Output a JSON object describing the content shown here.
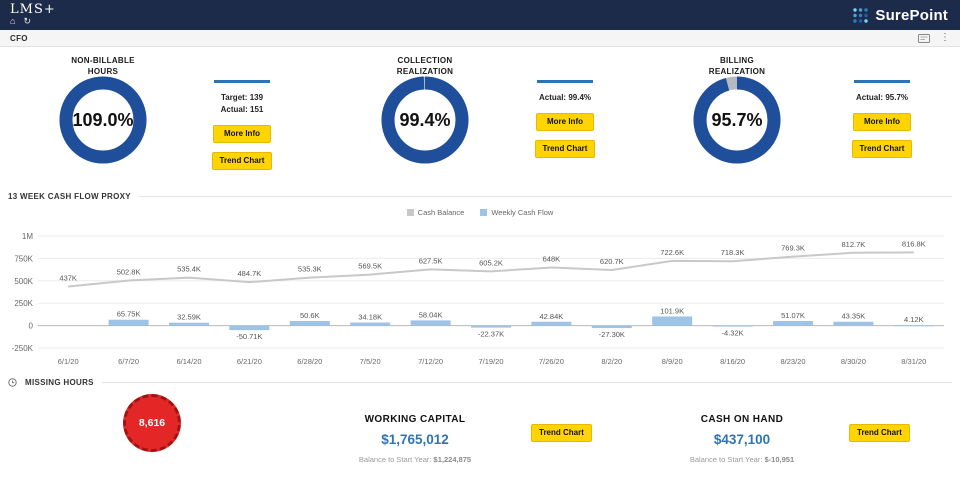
{
  "colors": {
    "navy": "#1c2b4a",
    "donut_blue": "#1f4e9b",
    "donut_track": "#b6bac0",
    "accent_blue": "#2e74b5",
    "button_yellow": "#ffd400",
    "bar_blue": "#9dc3e6",
    "line_gray": "#c8c8c8",
    "alert_red": "#e32726"
  },
  "icons": {
    "home": "⌂",
    "refresh": "↻",
    "kebab": "⋮"
  },
  "header": {
    "logo": "LMS+",
    "brand": "SurePoint"
  },
  "rolebar": {
    "role": "CFO"
  },
  "kpis": [
    {
      "title_line1": "NON-BILLABLE",
      "title_line2": "HOURS",
      "value": "109.0%",
      "pct": 109,
      "target_label": "Target: 139",
      "actual_label": "Actual: 151",
      "more_info_label": "More Info",
      "trend_chart_label": "Trend Chart"
    },
    {
      "title_line1": "COLLECTION",
      "title_line2": "REALIZATION",
      "value": "99.4%",
      "pct": 99.4,
      "actual_label": "Actual: 99.4%",
      "more_info_label": "More Info",
      "trend_chart_label": "Trend Chart"
    },
    {
      "title_line1": "BILLING",
      "title_line2": "REALIZATION",
      "value": "95.7%",
      "pct": 95.7,
      "actual_label": "Actual: 95.7%",
      "more_info_label": "More Info",
      "trend_chart_label": "Trend Chart"
    }
  ],
  "cashflow": {
    "section_title": "13 WEEK CASH FLOW PROXY"
  },
  "chart_data": {
    "type": "combo",
    "title": "13 WEEK CASH FLOW PROXY",
    "categories": [
      "6/1/20",
      "6/7/20",
      "6/14/20",
      "6/21/20",
      "6/28/20",
      "7/5/20",
      "7/12/20",
      "7/19/20",
      "7/26/20",
      "8/2/20",
      "8/9/20",
      "8/16/20",
      "8/23/20",
      "8/30/20",
      "8/31/20"
    ],
    "series": [
      {
        "name": "Cash Balance",
        "type": "line",
        "color": "#c8c8c8",
        "values": [
          437000,
          502800,
          535400,
          484700,
          535300,
          569500,
          627500,
          605200,
          648000,
          620700,
          722600,
          718300,
          769300,
          812700,
          816800
        ],
        "labels": [
          "437K",
          "502.8K",
          "535.4K",
          "484.7K",
          "535.3K",
          "569.5K",
          "627.5K",
          "605.2K",
          "648K",
          "620.7K",
          "722.6K",
          "718.3K",
          "769.3K",
          "812.7K",
          "816.8K"
        ]
      },
      {
        "name": "Weekly Cash Flow",
        "type": "bar",
        "color": "#9dc3e6",
        "values": [
          null,
          65750,
          32590,
          -50710,
          50600,
          34180,
          58040,
          -22370,
          42840,
          -27300,
          101900,
          -4320,
          51070,
          43350,
          4120
        ],
        "labels": [
          "",
          "65.75K",
          "32.59K",
          "-50.71K",
          "50.6K",
          "34.18K",
          "58.04K",
          "-22.37K",
          "42.84K",
          "-27.30K",
          "101.9K",
          "-4.32K",
          "51.07K",
          "43.35K",
          "4.12K"
        ]
      }
    ],
    "ylim": [
      -250000,
      1000000
    ],
    "yticks": [
      {
        "value": 1000000,
        "label": "1M"
      },
      {
        "value": 750000,
        "label": "750K"
      },
      {
        "value": 500000,
        "label": "500K"
      },
      {
        "value": 250000,
        "label": "250K"
      },
      {
        "value": 0,
        "label": "0"
      },
      {
        "value": -250000,
        "label": "-250K"
      }
    ],
    "legend_position": "top",
    "grid": true
  },
  "missing_hours": {
    "section_title": "MISSING HOURS",
    "value": "8,616"
  },
  "working_capital": {
    "title": "WORKING CAPITAL",
    "value": "$1,765,012",
    "balance_label": "Balance to Start Year:",
    "balance_value": "$1,224,875",
    "trend_chart_label": "Trend Chart"
  },
  "cash_on_hand": {
    "title": "CASH ON HAND",
    "value": "$437,100",
    "balance_label": "Balance to Start Year:",
    "balance_value": "$-10,951",
    "trend_chart_label": "Trend Chart"
  }
}
